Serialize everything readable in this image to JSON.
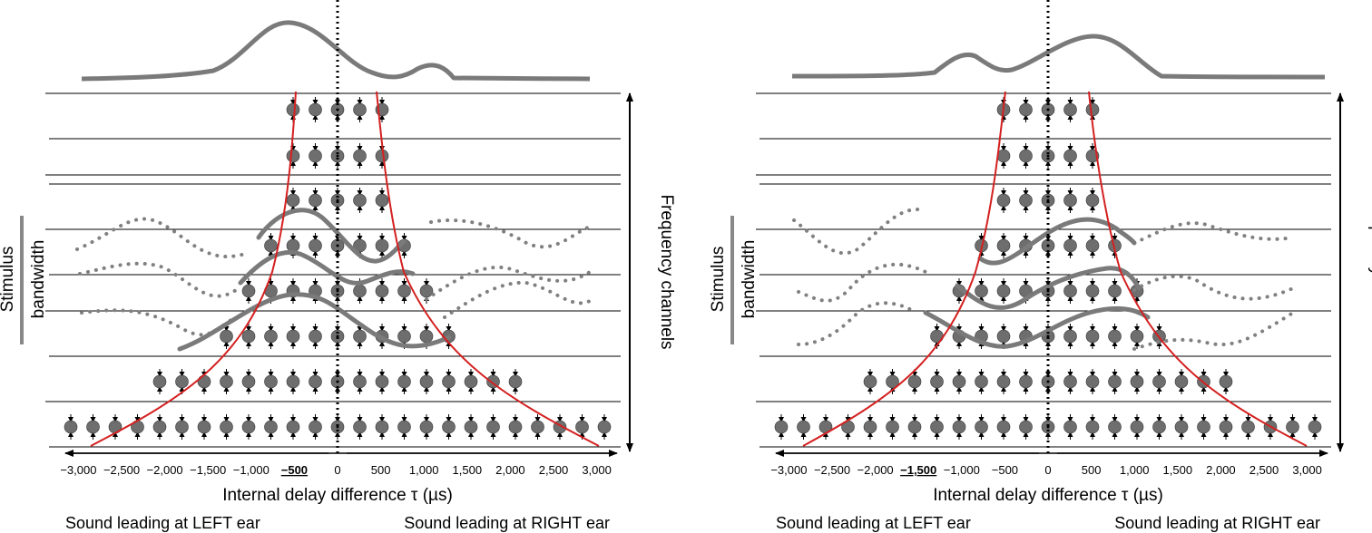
{
  "panels": [
    {
      "id": "left",
      "ticks": [
        "−3,000",
        "−2,500",
        "−2,000",
        "−1,500",
        "−1,000",
        "−500",
        "0",
        "500",
        "1,000",
        "1,500",
        "2,000",
        "2,500",
        "3,000"
      ],
      "highlight_tick": "−500",
      "axis_label": "Internal delay difference τ (µs)",
      "left_label": "Sound leading at LEFT ear",
      "right_label": "Sound leading at RIGHT ear",
      "stimulus_label_1": "Stimulus",
      "stimulus_label_2": "bandwidth",
      "frequency_label": "Frequency channels"
    },
    {
      "id": "right",
      "ticks": [
        "−3,000",
        "−2,500",
        "−2,000",
        "−1,500",
        "−1,000",
        "−500",
        "0",
        "500",
        "1,000",
        "1,500",
        "2,000",
        "2,500",
        "3,000"
      ],
      "highlight_tick": "−1,500",
      "axis_label": "Internal delay difference τ (µs)",
      "left_label": "Sound leading at LEFT ear",
      "right_label": "Sound leading at RIGHT ear",
      "stimulus_label_1": "Stimulus",
      "stimulus_label_2": "bandwidth",
      "frequency_label": "Frequency channels"
    }
  ],
  "colors": {
    "envelope": "#7a7a7a",
    "red_boundary": "#d42020",
    "node_fill": "#6e6e6e",
    "dotted": "#808080"
  }
}
